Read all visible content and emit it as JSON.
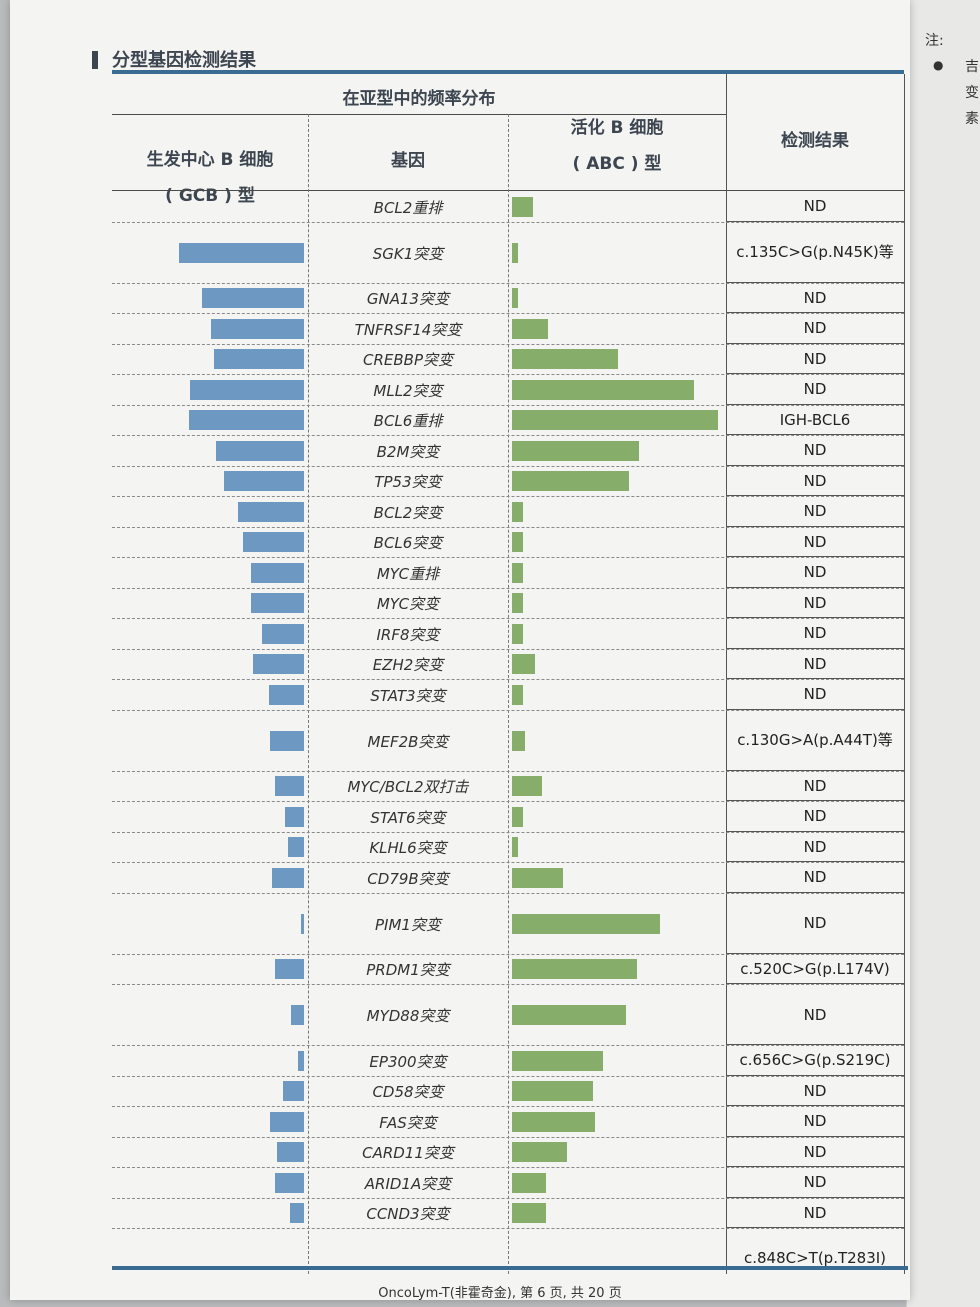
{
  "section_title": "分型基因检测结果",
  "table": {
    "header_span": "在亚型中的频率分布",
    "gcb_line1": "生发中心 B 细胞",
    "gcb_line2": "( GCB ) 型",
    "gene": "基因",
    "abc_line1": "活化 B 细胞",
    "abc_line2": "( ABC ) 型",
    "result": "检测结果"
  },
  "rows": [
    {
      "gene": "BCL2重排",
      "gcb": 0.0,
      "abc": 0.1,
      "result": "ND"
    },
    {
      "gene": "SGK1突变",
      "gcb": 0.78,
      "abc": 0.03,
      "result": "c.135C>G(p.N45K)等"
    },
    {
      "gene": "GNA13突变",
      "gcb": 0.64,
      "abc": 0.03,
      "result": "ND"
    },
    {
      "gene": "TNFRSF14突变",
      "gcb": 0.58,
      "abc": 0.17,
      "result": "ND"
    },
    {
      "gene": "CREBBP突变",
      "gcb": 0.56,
      "abc": 0.5,
      "result": "ND"
    },
    {
      "gene": "MLL2突变",
      "gcb": 0.71,
      "abc": 0.86,
      "result": "ND"
    },
    {
      "gene": "BCL6重排",
      "gcb": 0.72,
      "abc": 0.97,
      "result": "IGH-BCL6"
    },
    {
      "gene": "B2M突变",
      "gcb": 0.55,
      "abc": 0.6,
      "result": "ND"
    },
    {
      "gene": "TP53突变",
      "gcb": 0.5,
      "abc": 0.55,
      "result": "ND"
    },
    {
      "gene": "BCL2突变",
      "gcb": 0.41,
      "abc": 0.05,
      "result": "ND"
    },
    {
      "gene": "BCL6突变",
      "gcb": 0.38,
      "abc": 0.05,
      "result": "ND"
    },
    {
      "gene": "MYC重排",
      "gcb": 0.33,
      "abc": 0.05,
      "result": "ND"
    },
    {
      "gene": "MYC突变",
      "gcb": 0.33,
      "abc": 0.05,
      "result": "ND"
    },
    {
      "gene": "IRF8突变",
      "gcb": 0.26,
      "abc": 0.05,
      "result": "ND"
    },
    {
      "gene": "EZH2突变",
      "gcb": 0.32,
      "abc": 0.11,
      "result": "ND"
    },
    {
      "gene": "STAT3突变",
      "gcb": 0.22,
      "abc": 0.05,
      "result": "ND"
    },
    {
      "gene": "MEF2B突变",
      "gcb": 0.21,
      "abc": 0.06,
      "result": "c.130G>A(p.A44T)等"
    },
    {
      "gene": "MYC/BCL2双打击",
      "gcb": 0.18,
      "abc": 0.14,
      "result": "ND"
    },
    {
      "gene": "STAT6突变",
      "gcb": 0.12,
      "abc": 0.05,
      "result": "ND"
    },
    {
      "gene": "KLHL6突变",
      "gcb": 0.1,
      "abc": 0.03,
      "result": "ND"
    },
    {
      "gene": "CD79B突变",
      "gcb": 0.2,
      "abc": 0.24,
      "result": "ND"
    },
    {
      "gene": "PIM1突变",
      "gcb": 0.02,
      "abc": 0.7,
      "result": "ND"
    },
    {
      "gene": "PRDM1突变",
      "gcb": 0.18,
      "abc": 0.59,
      "result": "c.520C>G(p.L174V)"
    },
    {
      "gene": "MYD88突变",
      "gcb": 0.08,
      "abc": 0.54,
      "result": "ND"
    },
    {
      "gene": "EP300突变",
      "gcb": 0.04,
      "abc": 0.43,
      "result": "c.656C>G(p.S219C)"
    },
    {
      "gene": "CD58突变",
      "gcb": 0.13,
      "abc": 0.38,
      "result": "ND"
    },
    {
      "gene": "FAS突变",
      "gcb": 0.21,
      "abc": 0.39,
      "result": "ND"
    },
    {
      "gene": "CARD11突变",
      "gcb": 0.17,
      "abc": 0.26,
      "result": "ND"
    },
    {
      "gene": "ARID1A突变",
      "gcb": 0.18,
      "abc": 0.16,
      "result": "ND"
    },
    {
      "gene": "CCND3突变",
      "gcb": 0.09,
      "abc": 0.16,
      "result": "ND"
    }
  ],
  "last_result": "c.848C>T(p.T283I)",
  "footer": "OncoLym-T(非霍奇金),  第 6 页,  共 20 页",
  "side_page": {
    "note": "注:",
    "chars": [
      "吉",
      "变",
      "素"
    ]
  }
}
